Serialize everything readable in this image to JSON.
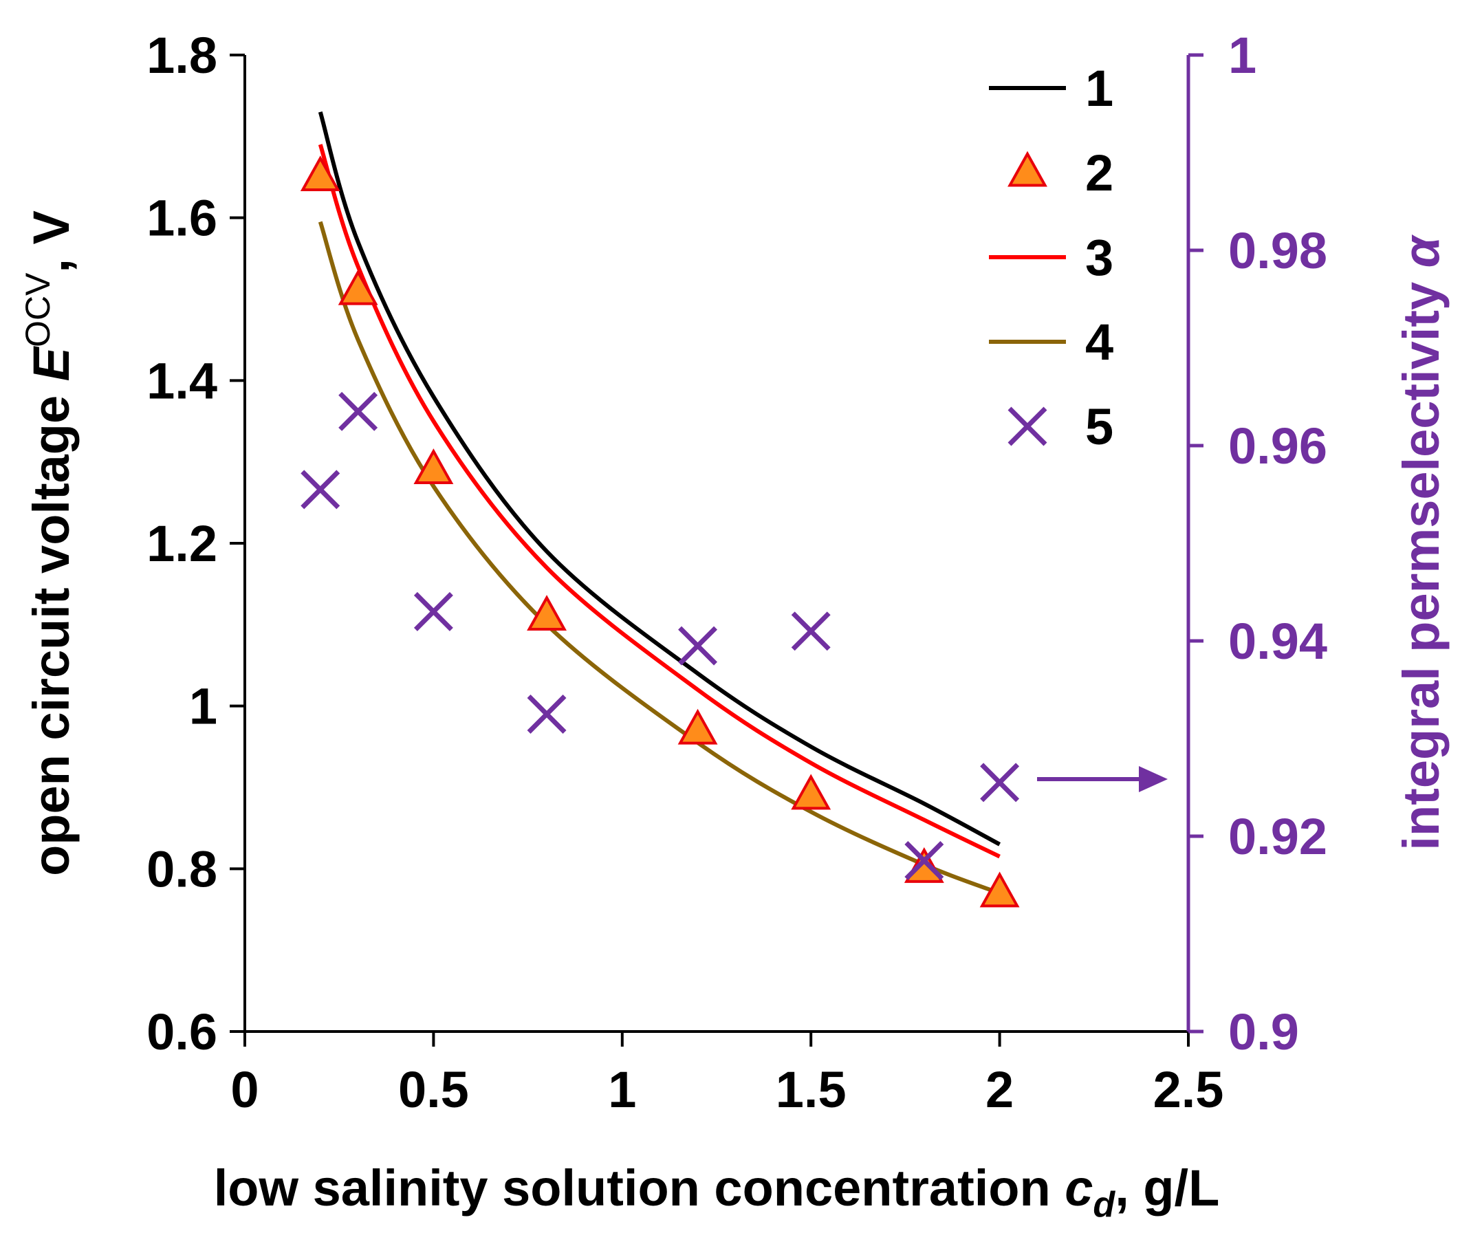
{
  "chart_data": {
    "type": "line",
    "title": "",
    "x": [
      0.2,
      0.3,
      0.5,
      0.8,
      1.2,
      1.5,
      1.8,
      2.0
    ],
    "xlim": [
      0,
      2.5
    ],
    "ylim": [
      0.6,
      1.8
    ],
    "y2lim": [
      0.9,
      1.0
    ],
    "xticks": [
      "0",
      "0.5",
      "1",
      "1.5",
      "2",
      "2.5"
    ],
    "yticks": [
      "0.6",
      "0.8",
      "1",
      "1.2",
      "1.4",
      "1.6",
      "1.8"
    ],
    "y2ticks": [
      "0.9",
      "0.92",
      "0.94",
      "0.96",
      "0.98",
      "1"
    ],
    "xlabel": {
      "main": "low salinity solution concentration ",
      "var": "c",
      "sub": "d",
      "unit": ", g/L"
    },
    "ylabel": {
      "main": "open circuit voltage ",
      "var": "E",
      "sup": "OCV",
      "unit": ", V"
    },
    "y2label": {
      "main": "integral permselectivity ",
      "var": "α"
    },
    "arrow": "→ right axis",
    "series": [
      {
        "name": "1",
        "style": "line",
        "color": "#000000",
        "axis": "left",
        "x": [
          0.2,
          0.3,
          0.5,
          0.8,
          1.2,
          1.5,
          1.8,
          2.0
        ],
        "values": [
          1.73,
          1.57,
          1.38,
          1.19,
          1.04,
          0.95,
          0.88,
          0.83
        ]
      },
      {
        "name": "2",
        "style": "triangle",
        "color": "#FF8C1A",
        "edge": "#E8000B",
        "axis": "left",
        "x": [
          0.2,
          0.3,
          0.5,
          0.8,
          1.2,
          1.5,
          1.8,
          2.0
        ],
        "values": [
          1.65,
          1.51,
          1.29,
          1.11,
          0.97,
          0.89,
          0.8,
          0.77
        ]
      },
      {
        "name": "3",
        "style": "line",
        "color": "#FF0000",
        "axis": "left",
        "x": [
          0.2,
          0.3,
          0.5,
          0.8,
          1.2,
          1.5,
          1.8,
          2.0
        ],
        "values": [
          1.69,
          1.54,
          1.35,
          1.17,
          1.02,
          0.93,
          0.86,
          0.815
        ]
      },
      {
        "name": "4",
        "style": "line",
        "color": "#8B6508",
        "axis": "left",
        "x": [
          0.2,
          0.3,
          0.5,
          0.8,
          1.2,
          1.5,
          1.8,
          2.0
        ],
        "values": [
          1.595,
          1.45,
          1.27,
          1.1,
          0.955,
          0.87,
          0.805,
          0.77
        ]
      },
      {
        "name": "5",
        "style": "cross",
        "color": "#7030A0",
        "axis": "right",
        "x": [
          0.2,
          0.3,
          0.5,
          0.8,
          1.2,
          1.5,
          1.8,
          2.0
        ],
        "values": [
          0.9555,
          0.9635,
          0.943,
          0.9325,
          0.9395,
          0.941,
          0.9175,
          0.9255
        ]
      }
    ],
    "legend_position": "top-right"
  }
}
